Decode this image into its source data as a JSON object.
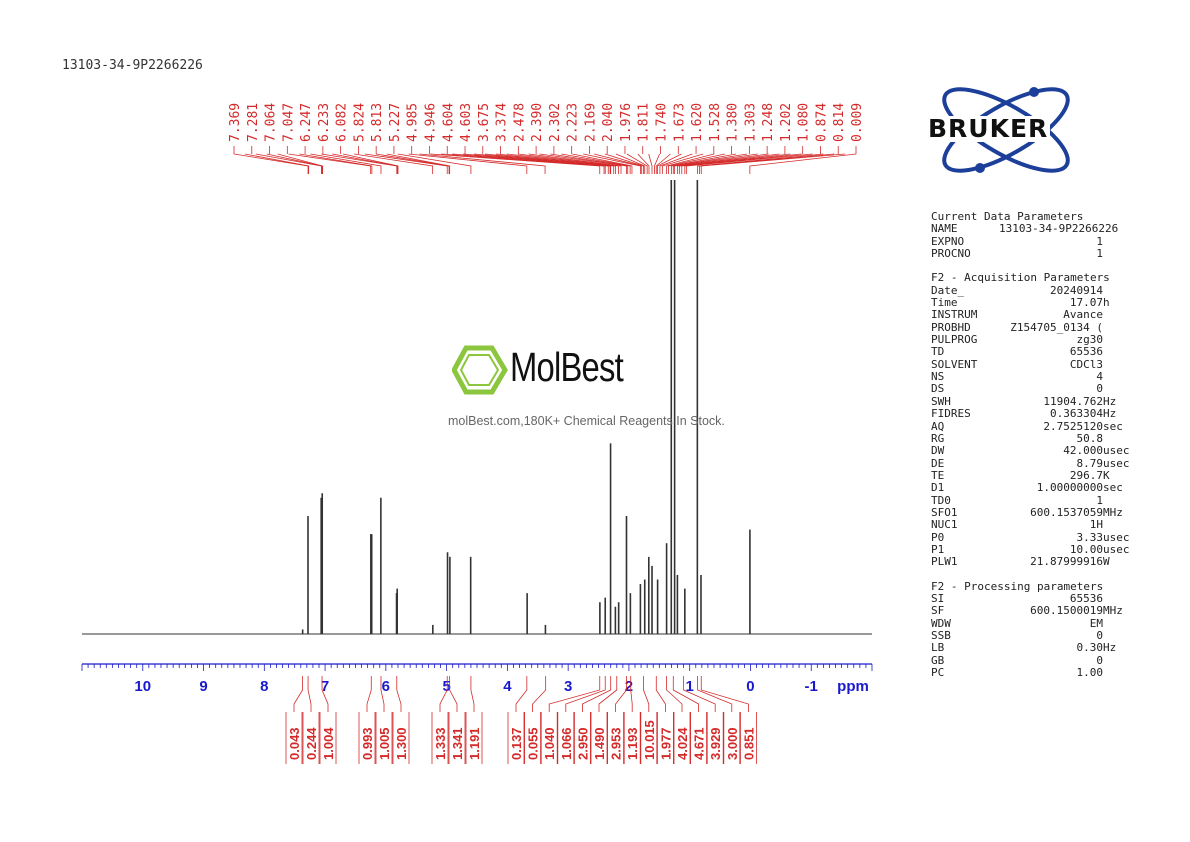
{
  "sample_id": "13103-34-9P2266226",
  "logo_text": "BRUKER",
  "watermark": {
    "brand": "MolBest",
    "tagline": "molBest.com,180K+ Chemical Reagents In Stock."
  },
  "parameters": {
    "current": {
      "title": "Current Data Parameters",
      "rows": [
        {
          "key": "NAME",
          "value": "13103-34-9P2266226",
          "unit": ""
        },
        {
          "key": "EXPNO",
          "value": "1",
          "unit": ""
        },
        {
          "key": "PROCNO",
          "value": "1",
          "unit": ""
        }
      ]
    },
    "acquisition": {
      "title": "F2 - Acquisition Parameters",
      "rows": [
        {
          "key": "Date_",
          "value": "20240914",
          "unit": ""
        },
        {
          "key": "Time",
          "value": "17.07",
          "unit": "h"
        },
        {
          "key": "INSTRUM",
          "value": "Avance",
          "unit": ""
        },
        {
          "key": "PROBHD",
          "value": "Z154705_0134 (",
          "unit": ""
        },
        {
          "key": "PULPROG",
          "value": "zg30",
          "unit": ""
        },
        {
          "key": "TD",
          "value": "65536",
          "unit": ""
        },
        {
          "key": "SOLVENT",
          "value": "CDCl3",
          "unit": ""
        },
        {
          "key": "NS",
          "value": "4",
          "unit": ""
        },
        {
          "key": "DS",
          "value": "0",
          "unit": ""
        },
        {
          "key": "SWH",
          "value": "11904.762",
          "unit": "Hz"
        },
        {
          "key": "FIDRES",
          "value": "0.363304",
          "unit": "Hz"
        },
        {
          "key": "AQ",
          "value": "2.7525120",
          "unit": "sec"
        },
        {
          "key": "RG",
          "value": "50.8",
          "unit": ""
        },
        {
          "key": "DW",
          "value": "42.000",
          "unit": "usec"
        },
        {
          "key": "DE",
          "value": "8.79",
          "unit": "usec"
        },
        {
          "key": "TE",
          "value": "296.7",
          "unit": "K"
        },
        {
          "key": "D1",
          "value": "1.00000000",
          "unit": "sec"
        },
        {
          "key": "TD0",
          "value": "1",
          "unit": ""
        },
        {
          "key": "SFO1",
          "value": "600.1537059",
          "unit": "MHz"
        },
        {
          "key": "NUC1",
          "value": "1H",
          "unit": ""
        },
        {
          "key": "P0",
          "value": "3.33",
          "unit": "usec"
        },
        {
          "key": "P1",
          "value": "10.00",
          "unit": "usec"
        },
        {
          "key": "PLW1",
          "value": "21.87999916",
          "unit": "W"
        }
      ]
    },
    "processing": {
      "title": "F2 - Processing parameters",
      "rows": [
        {
          "key": "SI",
          "value": "65536",
          "unit": ""
        },
        {
          "key": "SF",
          "value": "600.1500019",
          "unit": "MHz"
        },
        {
          "key": "WDW",
          "value": "EM",
          "unit": ""
        },
        {
          "key": "SSB",
          "value": "0",
          "unit": ""
        },
        {
          "key": "LB",
          "value": "0.30",
          "unit": "Hz"
        },
        {
          "key": "GB",
          "value": "0",
          "unit": ""
        },
        {
          "key": "PC",
          "value": "1.00",
          "unit": ""
        }
      ]
    }
  },
  "colors": {
    "peak_labels": "#d42a2a",
    "axis": "#1a1acc",
    "spectrum": "#333333",
    "logo_ring": "#1c3f9a",
    "watermark_green": "#8cc63f"
  },
  "chart_data": {
    "type": "line",
    "xlabel": "ppm",
    "xlim": [
      11.0,
      -2.0
    ],
    "x_ticks": [
      10,
      9,
      8,
      7,
      6,
      5,
      4,
      3,
      2,
      1,
      0,
      -1
    ],
    "x_ticks_reversed": true,
    "peak_labels": [
      "7.369",
      "7.281",
      "7.064",
      "7.047",
      "6.247",
      "6.233",
      "6.082",
      "5.824",
      "5.813",
      "5.227",
      "4.985",
      "4.946",
      "4.604",
      "4.603",
      "3.675",
      "3.374",
      "2.478",
      "2.390",
      "2.302",
      "2.223",
      "2.169",
      "2.040",
      "1.976",
      "1.811",
      "1.740",
      "1.673",
      "1.620",
      "1.528",
      "1.380",
      "1.303",
      "1.248",
      "1.202",
      "1.080",
      "0.874",
      "0.814",
      "0.009"
    ],
    "peak_markers": [
      7.28,
      7.27,
      7.06,
      7.05,
      7.04,
      6.25,
      6.23,
      6.08,
      5.82,
      5.81,
      5.8,
      5.23,
      4.99,
      4.96,
      4.95,
      4.6,
      3.68,
      3.38,
      2.48,
      2.41,
      2.39,
      2.34,
      2.31,
      2.3,
      2.25,
      2.22,
      2.17,
      2.13,
      2.04,
      2.02,
      1.98,
      1.95,
      1.81,
      1.79,
      1.76,
      1.74,
      1.7,
      1.67,
      1.62,
      1.58,
      1.55,
      1.53,
      1.49,
      1.45,
      1.38,
      1.35,
      1.3,
      1.27,
      1.25,
      1.2,
      1.17,
      1.13,
      1.08,
      1.05,
      0.87,
      0.84,
      0.81,
      0.01
    ],
    "spectrum_peaks": [
      {
        "ppm": 7.369,
        "height": 0.01
      },
      {
        "ppm": 7.281,
        "height": 0.26
      },
      {
        "ppm": 7.064,
        "height": 0.3
      },
      {
        "ppm": 7.047,
        "height": 0.31
      },
      {
        "ppm": 6.247,
        "height": 0.22
      },
      {
        "ppm": 6.233,
        "height": 0.22
      },
      {
        "ppm": 6.082,
        "height": 0.3
      },
      {
        "ppm": 5.824,
        "height": 0.09
      },
      {
        "ppm": 5.813,
        "height": 0.1
      },
      {
        "ppm": 5.227,
        "height": 0.02
      },
      {
        "ppm": 4.985,
        "height": 0.18
      },
      {
        "ppm": 4.946,
        "height": 0.17
      },
      {
        "ppm": 4.604,
        "height": 0.17
      },
      {
        "ppm": 3.675,
        "height": 0.09
      },
      {
        "ppm": 3.374,
        "height": 0.02
      },
      {
        "ppm": 2.478,
        "height": 0.07
      },
      {
        "ppm": 2.39,
        "height": 0.08
      },
      {
        "ppm": 2.302,
        "height": 0.42
      },
      {
        "ppm": 2.223,
        "height": 0.06
      },
      {
        "ppm": 2.169,
        "height": 0.07
      },
      {
        "ppm": 2.04,
        "height": 0.26
      },
      {
        "ppm": 1.976,
        "height": 0.09
      },
      {
        "ppm": 1.811,
        "height": 0.11
      },
      {
        "ppm": 1.74,
        "height": 0.12
      },
      {
        "ppm": 1.673,
        "height": 0.17
      },
      {
        "ppm": 1.62,
        "height": 0.15
      },
      {
        "ppm": 1.528,
        "height": 0.12
      },
      {
        "ppm": 1.38,
        "height": 0.2
      },
      {
        "ppm": 1.303,
        "height": 1.0
      },
      {
        "ppm": 1.248,
        "height": 1.0
      },
      {
        "ppm": 1.202,
        "height": 0.13
      },
      {
        "ppm": 1.08,
        "height": 0.1
      },
      {
        "ppm": 0.874,
        "height": 1.0
      },
      {
        "ppm": 0.814,
        "height": 0.13
      },
      {
        "ppm": 0.009,
        "height": 0.23
      }
    ],
    "integrals": [
      {
        "ppm": 7.37,
        "value": "0.043"
      },
      {
        "ppm": 7.28,
        "value": "0.244"
      },
      {
        "ppm": 7.05,
        "value": "1.004"
      },
      {
        "ppm": 6.24,
        "value": "0.993"
      },
      {
        "ppm": 6.08,
        "value": "1.005"
      },
      {
        "ppm": 5.82,
        "value": "1.300"
      },
      {
        "ppm": 4.99,
        "value": "1.333"
      },
      {
        "ppm": 4.95,
        "value": "1.341"
      },
      {
        "ppm": 4.6,
        "value": "1.191"
      },
      {
        "ppm": 3.68,
        "value": "0.137"
      },
      {
        "ppm": 3.37,
        "value": "0.055"
      },
      {
        "ppm": 2.48,
        "value": "1.040"
      },
      {
        "ppm": 2.39,
        "value": "1.066"
      },
      {
        "ppm": 2.3,
        "value": "2.950"
      },
      {
        "ppm": 2.2,
        "value": "1.490"
      },
      {
        "ppm": 2.04,
        "value": "2.953"
      },
      {
        "ppm": 1.97,
        "value": "1.193"
      },
      {
        "ppm": 1.76,
        "value": "10.015"
      },
      {
        "ppm": 1.55,
        "value": "1.977"
      },
      {
        "ppm": 1.38,
        "value": "4.024"
      },
      {
        "ppm": 1.27,
        "value": "4.671"
      },
      {
        "ppm": 1.1,
        "value": "3.929"
      },
      {
        "ppm": 0.87,
        "value": "3.000"
      },
      {
        "ppm": 0.81,
        "value": "0.851"
      }
    ]
  }
}
